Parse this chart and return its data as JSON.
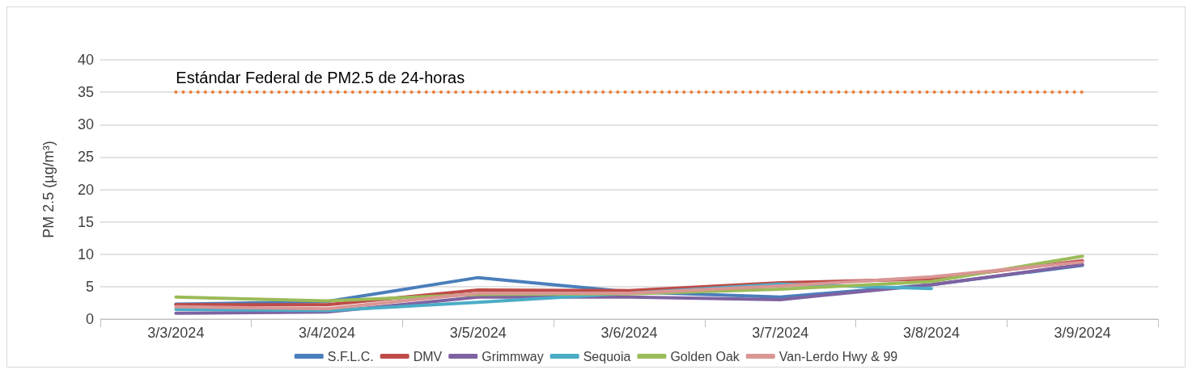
{
  "chart_data": {
    "type": "line",
    "ylabel": "PM 2.5 (µg/m³)",
    "categories": [
      "3/3/2024",
      "3/4/2024",
      "3/5/2024",
      "3/6/2024",
      "3/7/2024",
      "3/8/2024",
      "3/9/2024"
    ],
    "series": [
      {
        "name": "S.F.L.C.",
        "color": "#4a7ebb",
        "values": [
          2.3,
          2.7,
          6.4,
          4.2,
          3.4,
          5.3,
          8.3
        ]
      },
      {
        "name": "DMV",
        "color": "#be4b48",
        "values": [
          2.2,
          2.2,
          4.5,
          4.4,
          5.6,
          6.2,
          9.0
        ]
      },
      {
        "name": "Grimmway",
        "color": "#7e62a1",
        "values": [
          0.9,
          1.1,
          3.4,
          3.4,
          3.0,
          5.3,
          8.4
        ]
      },
      {
        "name": "Sequoia",
        "color": "#4bacc6",
        "values": [
          1.5,
          1.3,
          2.6,
          4.0,
          5.4,
          4.7,
          null
        ]
      },
      {
        "name": "Golden Oak",
        "color": "#9bbb59",
        "values": [
          3.4,
          2.8,
          3.8,
          3.9,
          4.6,
          5.8,
          9.7
        ]
      },
      {
        "name": "Van-Lerdo Hwy & 99",
        "color": "#d99694",
        "values": [
          1.9,
          1.6,
          4.0,
          4.0,
          5.1,
          6.5,
          8.8
        ]
      }
    ],
    "ylim": [
      0,
      40
    ],
    "yticks": [
      0,
      5,
      10,
      15,
      20,
      25,
      30,
      35,
      40
    ],
    "grid": "y",
    "legend": "bottom",
    "marker": "none",
    "line_style": "solid",
    "ref_lines": [
      {
        "axis": "y",
        "value": 35,
        "label": "Estándar Federal de PM2.5 de 24-horas",
        "color": "#ed7d31",
        "line_style": "dotted"
      }
    ]
  }
}
